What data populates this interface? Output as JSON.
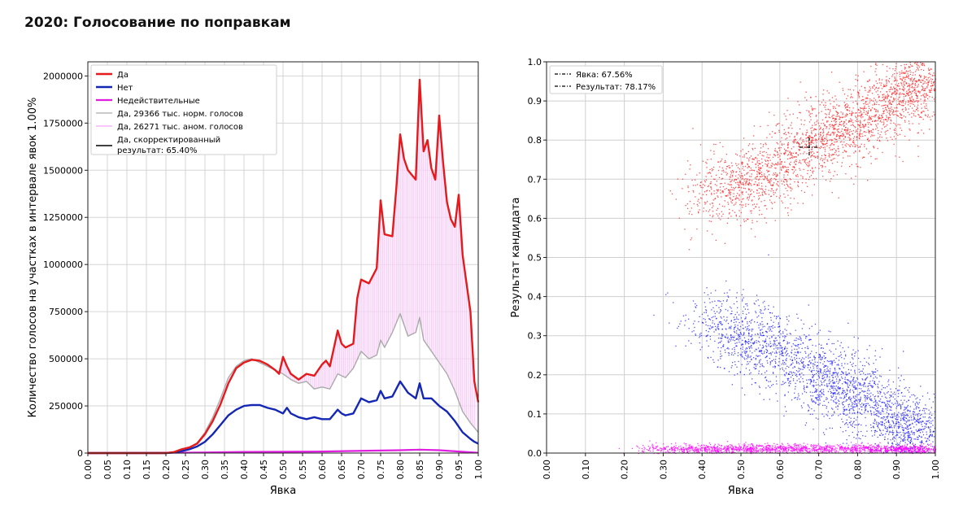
{
  "page": {
    "title": "2020: Голосование по поправкам"
  },
  "chart_data": [
    {
      "type": "line",
      "xlabel": "Явка",
      "ylabel": "Количество голосов на участках в интервале явок 1.00%",
      "xlim": [
        0,
        1
      ],
      "ylim": [
        0,
        2075000
      ],
      "grid": true,
      "legend_position": "top-left",
      "x_ticks": [
        "0.00",
        "0.05",
        "0.10",
        "0.15",
        "0.20",
        "0.25",
        "0.30",
        "0.35",
        "0.40",
        "0.45",
        "0.50",
        "0.55",
        "0.60",
        "0.65",
        "0.70",
        "0.75",
        "0.80",
        "0.85",
        "0.90",
        "0.95",
        "1.00"
      ],
      "y_ticks": [
        "0",
        "250000",
        "500000",
        "750000",
        "1000000",
        "1250000",
        "1500000",
        "1750000",
        "2000000"
      ],
      "series": [
        {
          "name": "Да",
          "color": "#e41a1c",
          "x": [
            0.0,
            0.2,
            0.22,
            0.24,
            0.26,
            0.28,
            0.3,
            0.32,
            0.34,
            0.36,
            0.38,
            0.4,
            0.42,
            0.44,
            0.46,
            0.48,
            0.49,
            0.5,
            0.51,
            0.52,
            0.54,
            0.56,
            0.58,
            0.6,
            0.61,
            0.62,
            0.64,
            0.65,
            0.66,
            0.68,
            0.69,
            0.7,
            0.72,
            0.74,
            0.75,
            0.76,
            0.78,
            0.79,
            0.8,
            0.81,
            0.82,
            0.84,
            0.85,
            0.86,
            0.87,
            0.88,
            0.89,
            0.9,
            0.91,
            0.92,
            0.93,
            0.94,
            0.95,
            0.96,
            0.97,
            0.98,
            0.99,
            1.0
          ],
          "y": [
            0,
            0,
            5000,
            20000,
            30000,
            50000,
            100000,
            170000,
            260000,
            370000,
            450000,
            480000,
            495000,
            490000,
            470000,
            440000,
            420000,
            510000,
            460000,
            420000,
            390000,
            420000,
            410000,
            470000,
            490000,
            460000,
            650000,
            580000,
            560000,
            580000,
            820000,
            920000,
            900000,
            980000,
            1340000,
            1160000,
            1150000,
            1400000,
            1690000,
            1560000,
            1500000,
            1450000,
            1980000,
            1600000,
            1660000,
            1510000,
            1450000,
            1790000,
            1540000,
            1330000,
            1240000,
            1200000,
            1370000,
            1050000,
            900000,
            750000,
            380000,
            270000
          ]
        },
        {
          "name": "Нет",
          "color": "#1426b4",
          "x": [
            0.0,
            0.2,
            0.22,
            0.24,
            0.26,
            0.28,
            0.3,
            0.32,
            0.34,
            0.36,
            0.38,
            0.4,
            0.42,
            0.44,
            0.46,
            0.48,
            0.5,
            0.51,
            0.52,
            0.54,
            0.56,
            0.58,
            0.6,
            0.62,
            0.64,
            0.65,
            0.66,
            0.68,
            0.7,
            0.72,
            0.74,
            0.75,
            0.76,
            0.78,
            0.8,
            0.82,
            0.84,
            0.85,
            0.86,
            0.88,
            0.9,
            0.92,
            0.94,
            0.96,
            0.98,
            0.99,
            1.0
          ],
          "y": [
            0,
            0,
            3000,
            10000,
            20000,
            35000,
            60000,
            100000,
            150000,
            200000,
            230000,
            250000,
            255000,
            255000,
            240000,
            230000,
            210000,
            240000,
            210000,
            190000,
            180000,
            190000,
            180000,
            180000,
            230000,
            210000,
            200000,
            210000,
            290000,
            270000,
            280000,
            330000,
            290000,
            300000,
            380000,
            320000,
            290000,
            370000,
            290000,
            290000,
            250000,
            220000,
            170000,
            110000,
            75000,
            60000,
            50000
          ]
        },
        {
          "name": "Недействительные",
          "color": "#e01ee0",
          "x": [
            0.0,
            0.25,
            0.4,
            0.6,
            0.7,
            0.8,
            0.85,
            0.9,
            0.95,
            1.0
          ],
          "y": [
            0,
            2000,
            6000,
            8000,
            12000,
            15000,
            18000,
            15000,
            8000,
            2000
          ]
        },
        {
          "name": "Да, 29366 тыс. норм. голосов",
          "color": "#aaaaaa",
          "x": [
            0.0,
            0.2,
            0.22,
            0.24,
            0.26,
            0.28,
            0.3,
            0.32,
            0.34,
            0.36,
            0.38,
            0.4,
            0.42,
            0.44,
            0.46,
            0.48,
            0.5,
            0.52,
            0.54,
            0.56,
            0.58,
            0.6,
            0.62,
            0.64,
            0.66,
            0.68,
            0.7,
            0.72,
            0.74,
            0.75,
            0.76,
            0.78,
            0.8,
            0.82,
            0.84,
            0.85,
            0.86,
            0.88,
            0.9,
            0.92,
            0.94,
            0.96,
            0.98,
            1.0
          ],
          "y": [
            0,
            0,
            5000,
            20000,
            30000,
            55000,
            110000,
            190000,
            290000,
            400000,
            460000,
            490000,
            500000,
            480000,
            460000,
            440000,
            420000,
            390000,
            370000,
            380000,
            340000,
            350000,
            340000,
            420000,
            400000,
            450000,
            540000,
            500000,
            520000,
            600000,
            560000,
            640000,
            740000,
            620000,
            640000,
            720000,
            600000,
            540000,
            480000,
            420000,
            330000,
            220000,
            160000,
            110000
          ]
        },
        {
          "name": "Да, 26271 тыс. аном. голосов",
          "color": "#f28ef2"
        },
        {
          "name": "Да, скорректированный результат: 65.40%",
          "color": "#000000"
        }
      ],
      "fill": {
        "between": [
          "Да",
          "Да, 29366 тыс. норм. голосов"
        ],
        "hatch": "vertical",
        "color": "#e070e0"
      },
      "legend": [
        {
          "label": "Да",
          "color": "#e41a1c"
        },
        {
          "label": "Нет",
          "color": "#1426b4"
        },
        {
          "label": "Недействительные",
          "color": "#e01ee0"
        },
        {
          "label": "Да, 29366 тыс. норм. голосов",
          "color": "#aaaaaa"
        },
        {
          "label": "Да, 26271 тыс. аном. голосов",
          "color": "#f28ef2"
        },
        {
          "label": "Да, скорректированный",
          "label2": "результат: 65.40%",
          "color": "#000000"
        }
      ]
    },
    {
      "type": "scatter",
      "xlabel": "Явка",
      "ylabel": "Результат кандидата",
      "xlim": [
        0,
        1
      ],
      "ylim": [
        0,
        1
      ],
      "grid": true,
      "legend_position": "top-left",
      "x_ticks": [
        "0.00",
        "0.10",
        "0.20",
        "0.30",
        "0.40",
        "0.50",
        "0.60",
        "0.70",
        "0.80",
        "0.90",
        "1.00"
      ],
      "y_ticks": [
        "0.0",
        "0.1",
        "0.2",
        "0.3",
        "0.4",
        "0.5",
        "0.6",
        "0.7",
        "0.8",
        "0.9",
        "1.0"
      ],
      "clusters": [
        {
          "series": "Да",
          "color": "#ff1a1a",
          "points": [
            [
              0.42,
              0.65
            ],
            [
              0.55,
              0.7
            ],
            [
              0.7,
              0.8
            ],
            [
              0.8,
              0.85
            ],
            [
              0.92,
              0.92
            ],
            [
              0.98,
              0.97
            ]
          ]
        },
        {
          "series": "Нет",
          "color": "#1a1aff",
          "points": [
            [
              0.42,
              0.34
            ],
            [
              0.55,
              0.28
            ],
            [
              0.7,
              0.2
            ],
            [
              0.8,
              0.15
            ],
            [
              0.92,
              0.07
            ],
            [
              0.98,
              0.03
            ]
          ]
        },
        {
          "series": "Недействительные",
          "color": "#ff00ff",
          "points": [
            [
              0.3,
              0.01
            ],
            [
              0.5,
              0.012
            ],
            [
              0.7,
              0.012
            ],
            [
              0.9,
              0.01
            ],
            [
              0.98,
              0.01
            ]
          ]
        }
      ],
      "crosshair": {
        "x": 0.6756,
        "y": 0.7817
      },
      "legend": [
        {
          "label": "Явка: 67.56%",
          "color": "#000000"
        },
        {
          "label": "Результат: 78.17%",
          "color": "#000000"
        }
      ]
    }
  ]
}
